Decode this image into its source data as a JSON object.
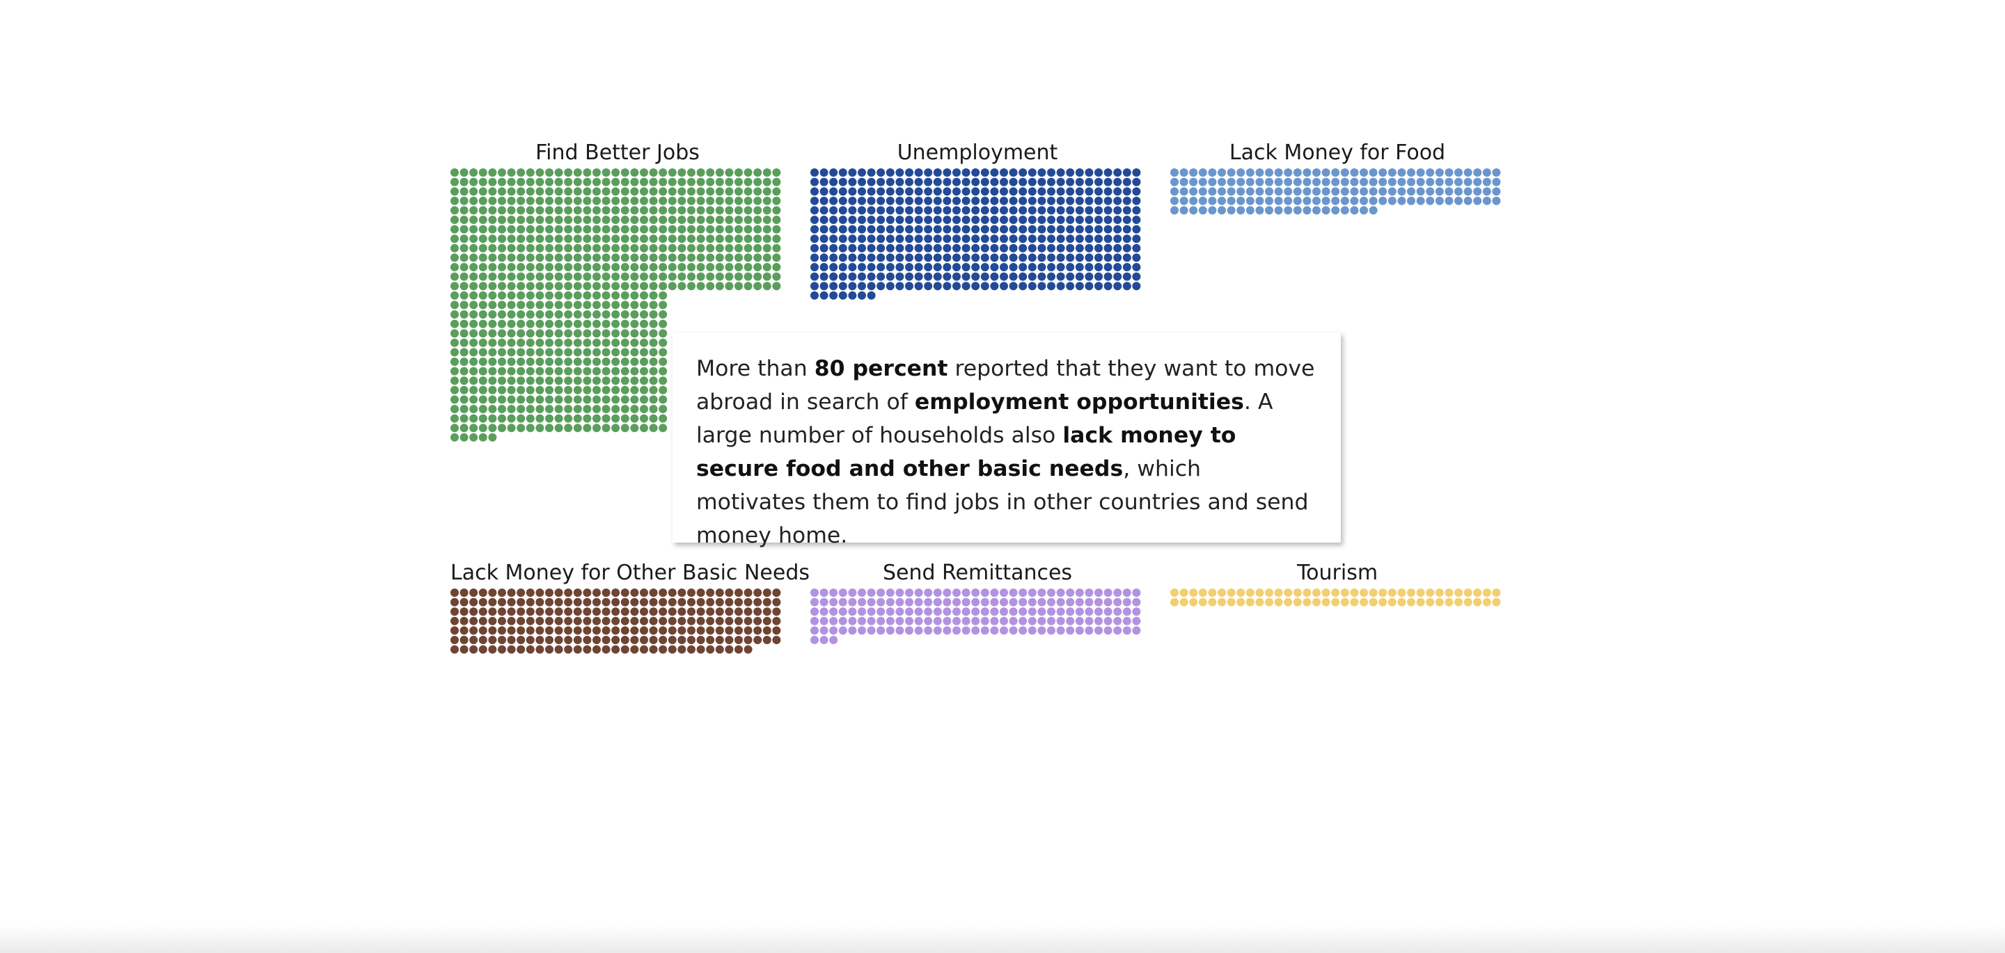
{
  "chart_data": {
    "type": "waffle",
    "unit": "one dot per household response",
    "series": [
      {
        "name": "Find Better Jobs",
        "count": 805,
        "color": "#5a9e5c"
      },
      {
        "name": "Unemployment",
        "count": 462,
        "color": "#234a96"
      },
      {
        "name": "Lack Money for Food",
        "count": 162,
        "color": "#6a96cc"
      },
      {
        "name": "Lack Money for Other Basic Needs",
        "count": 242,
        "color": "#6e4433"
      },
      {
        "name": "Send Remittances",
        "count": 178,
        "color": "#b293e0"
      },
      {
        "name": "Tourism",
        "count": 70,
        "color": "#f1cf72"
      }
    ]
  },
  "callout": {
    "p1": "More than ",
    "b1": "80 percent",
    "p2": " reported that they want to move abroad in search of ",
    "b2": "employment opportunities",
    "p3": ". A large number of households also ",
    "b3": "lack money to secure food and other basic needs",
    "p4": ", which motivates them to find jobs in other countries and send money home."
  }
}
